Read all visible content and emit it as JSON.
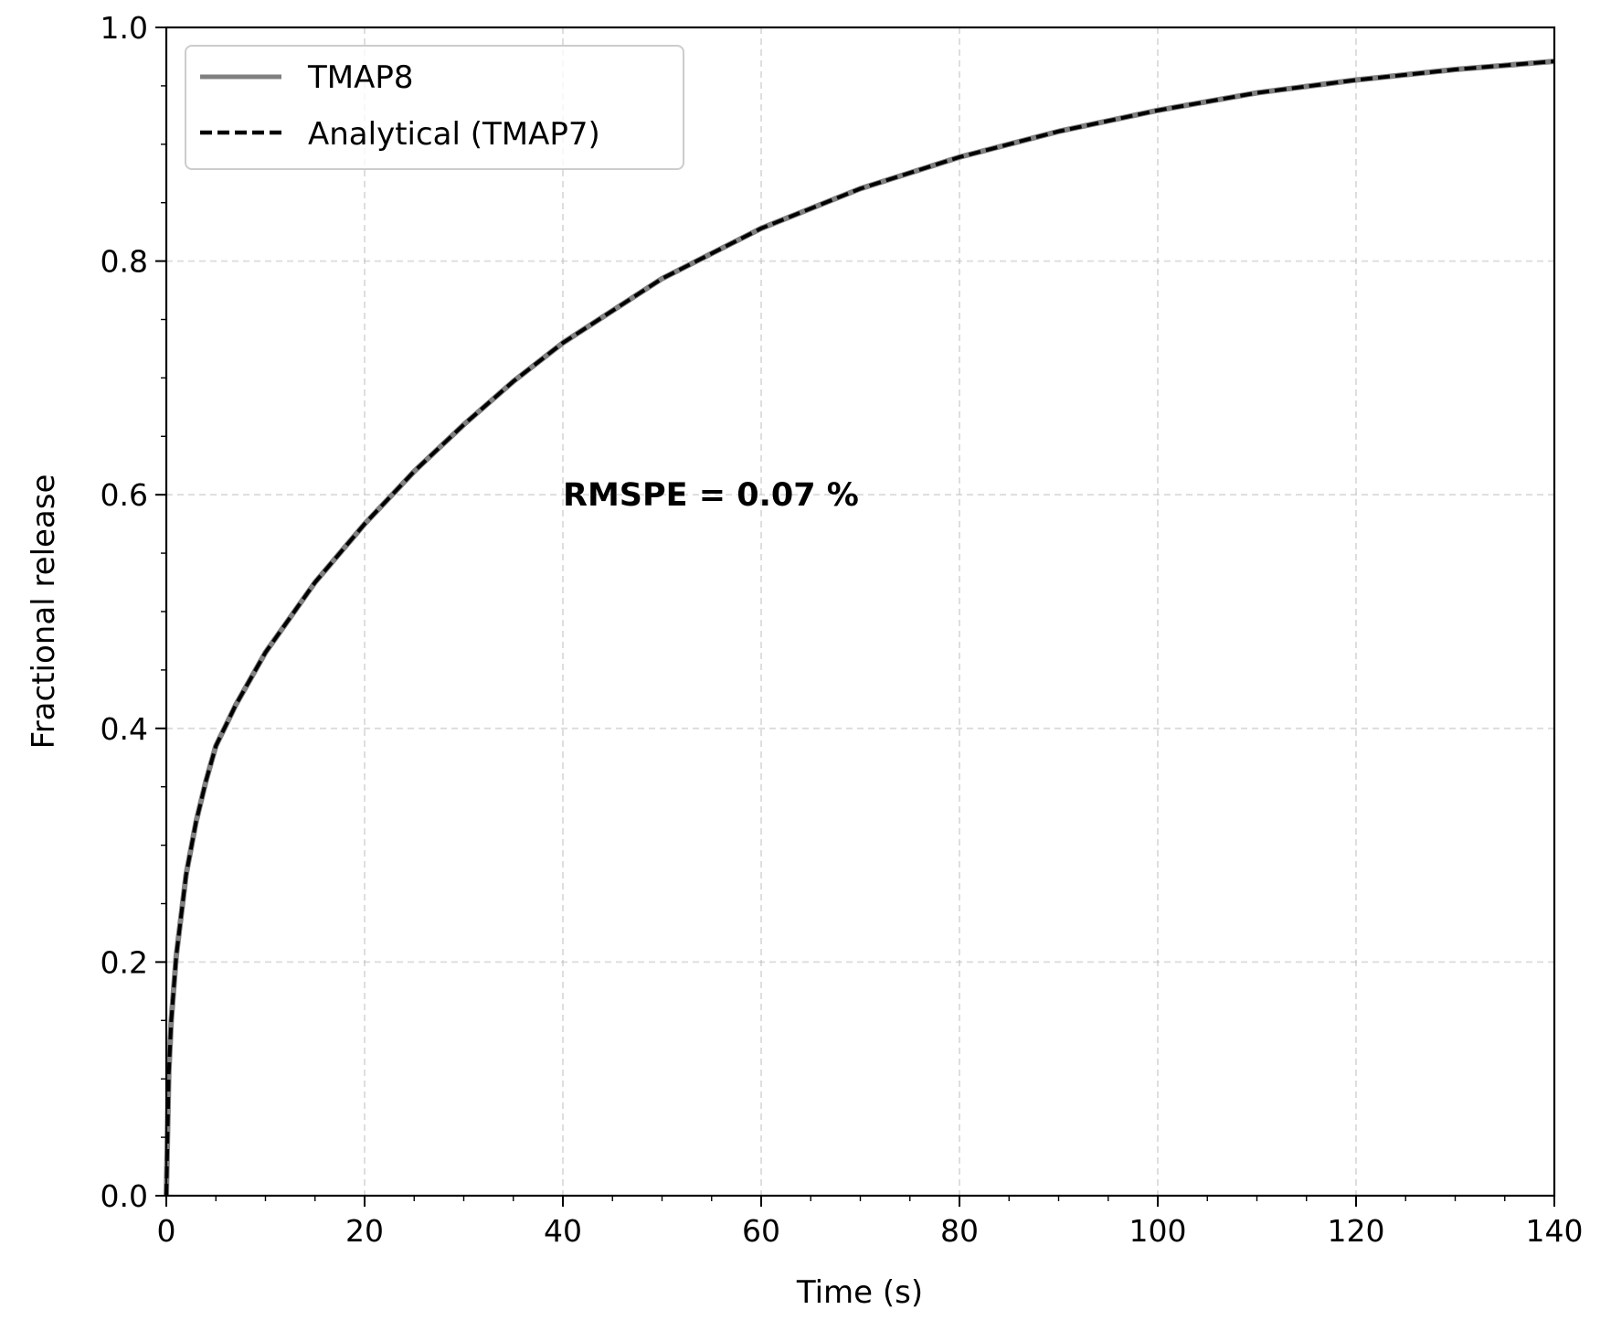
{
  "chart_data": {
    "type": "line",
    "xlabel": "Time (s)",
    "ylabel": "Fractional release",
    "xlim": [
      0,
      140
    ],
    "ylim": [
      0,
      1.0
    ],
    "xticks": [
      0,
      20,
      40,
      60,
      80,
      100,
      120,
      140
    ],
    "xtick_labels": [
      "0",
      "20",
      "40",
      "60",
      "80",
      "100",
      "120",
      "140"
    ],
    "yticks": [
      0.0,
      0.2,
      0.4,
      0.6,
      0.8,
      1.0
    ],
    "ytick_labels": [
      "0.0",
      "0.2",
      "0.4",
      "0.6",
      "0.8",
      "1.0"
    ],
    "grid": true,
    "legend_position": "top-left",
    "x": [
      0,
      0.25,
      0.5,
      1,
      2,
      3,
      4,
      5,
      7,
      10,
      15,
      20,
      25,
      30,
      35,
      40,
      50,
      60,
      70,
      80,
      90,
      100,
      110,
      120,
      130,
      140
    ],
    "series": [
      {
        "name": "TMAP8",
        "style": "solid",
        "color": "#808080",
        "values": [
          0,
          0.105,
          0.15,
          0.205,
          0.275,
          0.32,
          0.355,
          0.385,
          0.42,
          0.465,
          0.525,
          0.575,
          0.62,
          0.66,
          0.697,
          0.73,
          0.785,
          0.828,
          0.862,
          0.889,
          0.911,
          0.929,
          0.944,
          0.955,
          0.964,
          0.971
        ]
      },
      {
        "name": "Analytical (TMAP7)",
        "style": "dashed",
        "color": "#000000",
        "values": [
          0,
          0.105,
          0.15,
          0.205,
          0.275,
          0.32,
          0.355,
          0.385,
          0.42,
          0.465,
          0.525,
          0.575,
          0.62,
          0.66,
          0.697,
          0.73,
          0.785,
          0.828,
          0.862,
          0.889,
          0.911,
          0.929,
          0.944,
          0.955,
          0.964,
          0.971
        ]
      }
    ],
    "annotations": [
      {
        "text": "RMSPE = 0.07 %",
        "x": 40,
        "y": 0.6
      }
    ]
  }
}
